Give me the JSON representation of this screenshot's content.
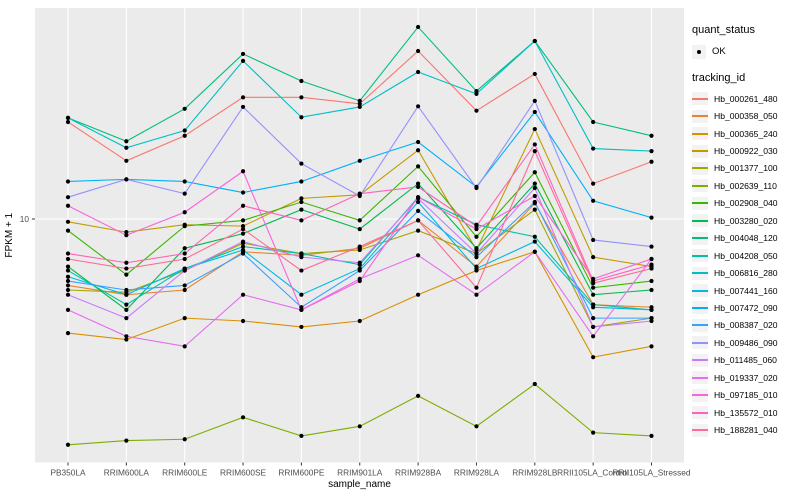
{
  "figure": {
    "background": "#FFFFFF",
    "panel_bg": "#EBEBEB",
    "grid_color": "#FFFFFF",
    "axis_text_color": "#4D4D4D",
    "text_color": "#000000",
    "legend_key_bg": "#F2F2F2",
    "marker_color": "#000000"
  },
  "legend": {
    "quant_status_title": "quant_status",
    "quant_ok_label": "OK",
    "tracking_title": "tracking_id"
  },
  "chart_data": {
    "type": "line",
    "title": "",
    "xlabel": "sample_name",
    "ylabel": "FPKM + 1",
    "y_scale": "log10",
    "y_ticks": [
      10
    ],
    "ylim": [
      1.7,
      46
    ],
    "grid": "major white on grey panel",
    "legend_position": "right",
    "marker": "black point on every value (quant_status OK)",
    "categories": [
      "PB350LA",
      "RRIM600LA",
      "RRIM600LE",
      "RRIM600SE",
      "RRIM600PE",
      "RRIM901LA",
      "RRIM928BA",
      "RRIM928LA",
      "RRIM928LB",
      "RRII105LA_Control",
      "RRII105LA_Stressed"
    ],
    "series": [
      {
        "name": "Hb_000261_480",
        "color": "#F8766D",
        "values": [
          20.1,
          15.2,
          18.2,
          24.0,
          24.0,
          22.9,
          33.5,
          21.8,
          28.4,
          12.9,
          15.1
        ]
      },
      {
        "name": "Hb_000358_050",
        "color": "#EA8331",
        "values": [
          6.2,
          5.8,
          6.0,
          7.9,
          7.7,
          8.1,
          9.9,
          7.1,
          11.2,
          5.4,
          5.3
        ]
      },
      {
        "name": "Hb_000365_240",
        "color": "#D89000",
        "values": [
          4.4,
          4.2,
          4.9,
          4.8,
          4.6,
          4.8,
          5.8,
          6.9,
          7.9,
          3.7,
          4.0
        ]
      },
      {
        "name": "Hb_000922_030",
        "color": "#C09B00",
        "values": [
          9.8,
          9.1,
          9.6,
          9.5,
          11.6,
          11.9,
          16.4,
          8.0,
          19.1,
          7.6,
          7.1
        ]
      },
      {
        "name": "Hb_001377_100",
        "color": "#A3A500",
        "values": [
          6.0,
          5.9,
          6.9,
          8.4,
          7.8,
          8.0,
          9.2,
          7.8,
          10.7,
          4.6,
          4.9
        ]
      },
      {
        "name": "Hb_002639_110",
        "color": "#7CAE00",
        "values": [
          1.97,
          2.03,
          2.05,
          2.4,
          2.1,
          2.25,
          2.8,
          2.25,
          3.05,
          2.15,
          2.1
        ]
      },
      {
        "name": "Hb_002908_040",
        "color": "#39B600",
        "values": [
          9.2,
          6.7,
          9.5,
          9.9,
          11.3,
          9.9,
          14.6,
          8.8,
          14.0,
          6.1,
          6.4
        ]
      },
      {
        "name": "Hb_003280_020",
        "color": "#00BB4E",
        "values": [
          7.1,
          5.2,
          8.1,
          9.0,
          10.7,
          9.3,
          12.9,
          8.1,
          12.9,
          5.8,
          6.0
        ]
      },
      {
        "name": "Hb_004048_120",
        "color": "#00BF7D",
        "values": [
          20.7,
          17.5,
          22.1,
          32.8,
          27.0,
          23.4,
          39.8,
          25.1,
          36.0,
          20.1,
          18.2
        ]
      },
      {
        "name": "Hb_004208_050",
        "color": "#00C1A3",
        "values": [
          6.9,
          5.4,
          7.0,
          8.2,
          7.8,
          7.2,
          11.7,
          9.6,
          8.8,
          5.4,
          5.2
        ]
      },
      {
        "name": "Hb_006816_280",
        "color": "#00BFC4",
        "values": [
          20.7,
          16.7,
          18.9,
          31.2,
          20.8,
          22.4,
          28.8,
          24.6,
          36.0,
          16.6,
          16.3
        ]
      },
      {
        "name": "Hb_007441_160",
        "color": "#00BAE0",
        "values": [
          6.6,
          5.8,
          7.0,
          8.0,
          5.8,
          7.0,
          11.3,
          7.0,
          8.5,
          5.3,
          5.2
        ]
      },
      {
        "name": "Hb_007472_090",
        "color": "#00B0F6",
        "values": [
          13.1,
          13.3,
          13.1,
          12.1,
          13.1,
          15.2,
          17.4,
          12.6,
          21.6,
          11.4,
          10.1
        ]
      },
      {
        "name": "Hb_008387_020",
        "color": "#35A2FF",
        "values": [
          6.4,
          6.0,
          6.2,
          7.8,
          5.3,
          6.9,
          10.6,
          7.6,
          11.3,
          4.9,
          4.9
        ]
      },
      {
        "name": "Hb_009486_090",
        "color": "#9590FF",
        "values": [
          11.7,
          13.3,
          12.0,
          22.4,
          14.9,
          11.8,
          22.5,
          12.5,
          23.4,
          8.6,
          8.2
        ]
      },
      {
        "name": "Hb_011485_060",
        "color": "#C77CFF",
        "values": [
          5.8,
          4.9,
          6.9,
          8.5,
          7.6,
          7.3,
          11.6,
          7.8,
          12.5,
          4.6,
          4.8
        ]
      },
      {
        "name": "Hb_019337_020",
        "color": "#E76BF3",
        "values": [
          5.2,
          4.3,
          4.0,
          5.8,
          5.2,
          6.5,
          7.7,
          5.8,
          7.9,
          4.3,
          7.5
        ]
      },
      {
        "name": "Hb_097185_010",
        "color": "#FA62DB",
        "values": [
          11.0,
          8.9,
          10.5,
          14.1,
          5.2,
          6.4,
          11.7,
          9.3,
          11.8,
          6.5,
          7.5
        ]
      },
      {
        "name": "Hb_135572_010",
        "color": "#FF62BC",
        "values": [
          7.8,
          7.3,
          7.8,
          11.0,
          9.9,
          12.0,
          12.6,
          9.5,
          17.1,
          6.4,
          7.2
        ]
      },
      {
        "name": "Hb_188281_040",
        "color": "#FF6A98",
        "values": [
          7.5,
          7.0,
          7.5,
          9.3,
          6.9,
          8.2,
          9.9,
          6.1,
          16.3,
          6.3,
          7.0
        ]
      }
    ]
  }
}
